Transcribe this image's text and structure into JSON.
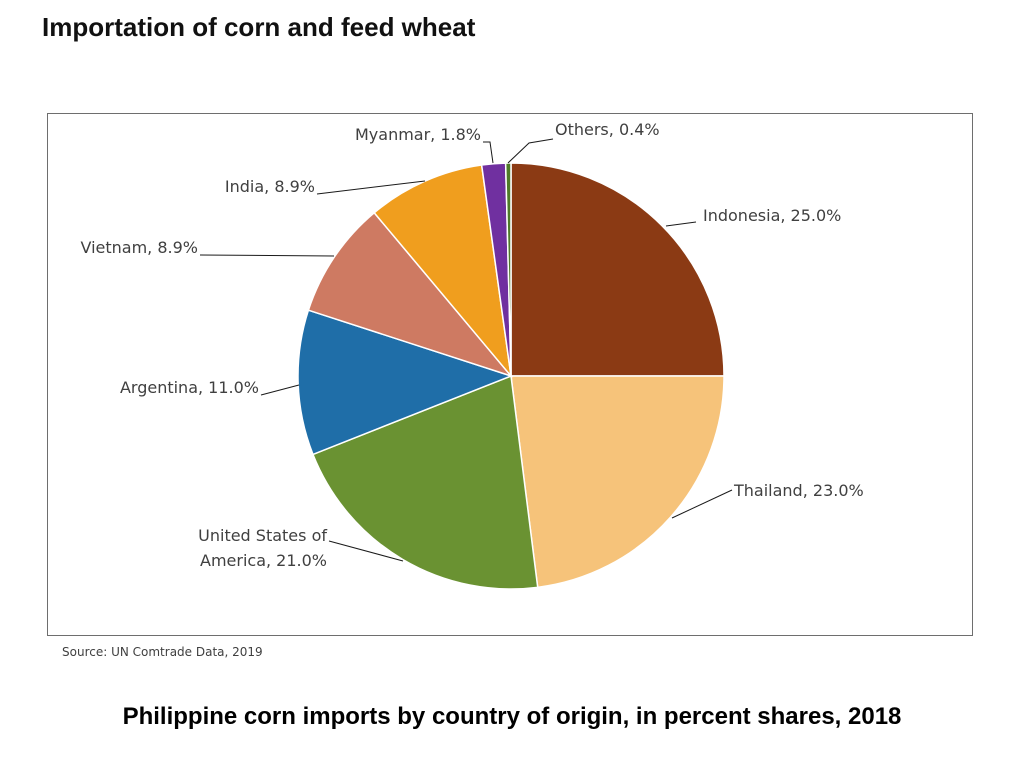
{
  "page": {
    "title": "Importation of corn and feed wheat",
    "source": "Source: UN Comtrade Data, 2019",
    "caption": "Philippine corn imports by country of origin, in percent shares, 2018"
  },
  "chart_data": {
    "type": "pie",
    "title": "",
    "start_angle": "12 o'clock",
    "direction": "clockwise",
    "slices": [
      {
        "label": "Indonesia",
        "value": 25.0,
        "display": "Indonesia, 25.0%",
        "color": "#8B3A14"
      },
      {
        "label": "Thailand",
        "value": 23.0,
        "display": "Thailand, 23.0%",
        "color": "#F6C37A"
      },
      {
        "label": "United States of America",
        "value": 21.0,
        "display": "United States of America, 21.0%",
        "display_lines": [
          "United States of",
          "America, 21.0%"
        ],
        "color": "#6A9232"
      },
      {
        "label": "Argentina",
        "value": 11.0,
        "display": "Argentina, 11.0%",
        "color": "#1F6EA8"
      },
      {
        "label": "Vietnam",
        "value": 8.9,
        "display": "Vietnam, 8.9%",
        "color": "#CE7A62"
      },
      {
        "label": "India",
        "value": 8.9,
        "display": "India, 8.9%",
        "color": "#F09E1E"
      },
      {
        "label": "Myanmar",
        "value": 1.8,
        "display": "Myanmar, 1.8%",
        "color": "#7030A0"
      },
      {
        "label": "Others",
        "value": 0.4,
        "display": "Others, 0.4%",
        "color": "#4E7A28"
      }
    ]
  }
}
